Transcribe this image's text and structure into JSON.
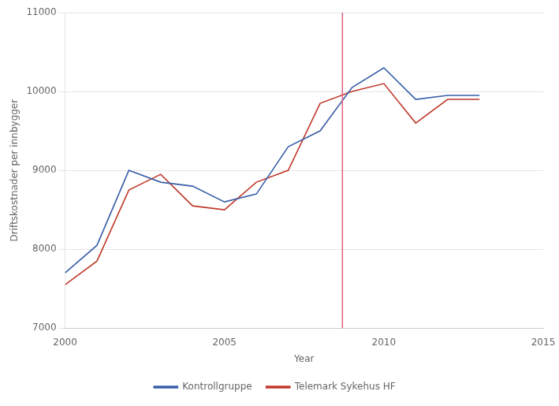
{
  "chart_data": {
    "type": "line",
    "x": [
      2000,
      2001,
      2002,
      2003,
      2004,
      2005,
      2006,
      2007,
      2008,
      2009,
      2010,
      2011,
      2012,
      2013
    ],
    "series": [
      {
        "name": "Kontrollgruppe",
        "color": "#3a5fa8",
        "values": [
          7700,
          8050,
          9000,
          8850,
          8800,
          8600,
          8700,
          9300,
          9500,
          10050,
          10300,
          9900,
          9950,
          9950
        ]
      },
      {
        "name": "Telemark Sykehus HF",
        "color": "#c0392b",
        "values": [
          7550,
          7850,
          8750,
          8950,
          8550,
          8500,
          8850,
          9000,
          9850,
          10000,
          10100,
          9600,
          9900,
          9900
        ]
      }
    ],
    "annotations": [
      {
        "type": "vline",
        "x": 2008.7,
        "color": "#e06080"
      }
    ],
    "xlabel": "Year",
    "ylabel": "Driftskostnader per innbygger",
    "xlim": [
      2000,
      2015
    ],
    "ylim": [
      7000,
      11000
    ],
    "xticks": [
      2000,
      2005,
      2010,
      2015
    ],
    "yticks": [
      7000,
      8000,
      9000,
      10000,
      11000
    ],
    "grid": "y",
    "legend": "bottom"
  }
}
